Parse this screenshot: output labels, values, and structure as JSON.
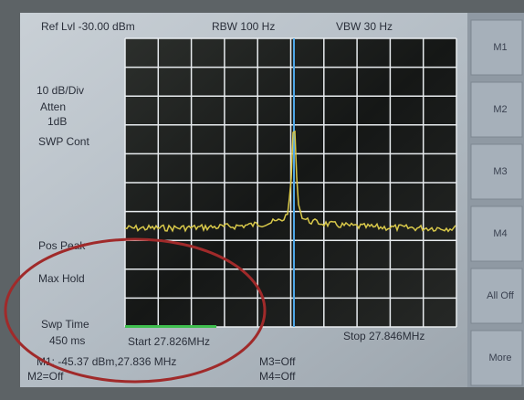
{
  "header": {
    "ref_level": "Ref Lvl -30.00 dBm",
    "rbw": "RBW  100 Hz",
    "vbw": "VBW  30 Hz"
  },
  "left_panel": [
    "10 dB/Div",
    "Atten",
    "1dB",
    "SWP Cont",
    "Pos Peak",
    "Max Hold",
    "Swp Time",
    "450 ms"
  ],
  "footer": {
    "start": "Start  27.826MHz",
    "stop": "Stop  27.846MHz",
    "marker1": "M1: -45.37 dBm,27.836 MHz",
    "marker2": "M2=Off",
    "marker3": "M3=Off",
    "marker4": "M4=Off"
  },
  "softkeys": [
    "M1",
    "M2",
    "M3",
    "M4",
    "All Off",
    "More"
  ]
}
